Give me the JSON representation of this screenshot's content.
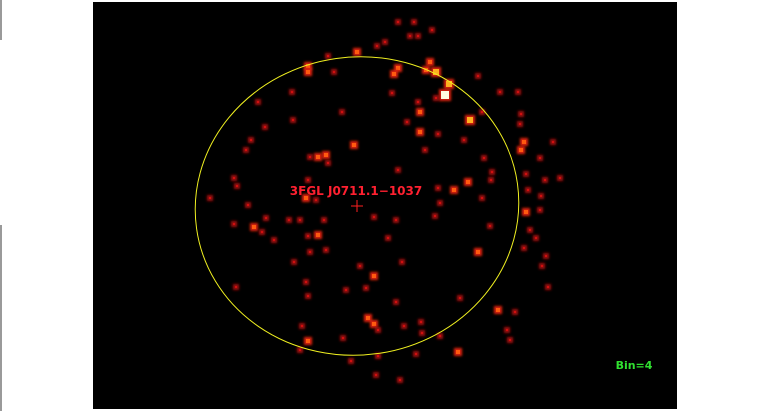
{
  "source": {
    "name": "3FGL J0711.1−1037"
  },
  "image": {
    "binning": "Bin=4"
  }
}
